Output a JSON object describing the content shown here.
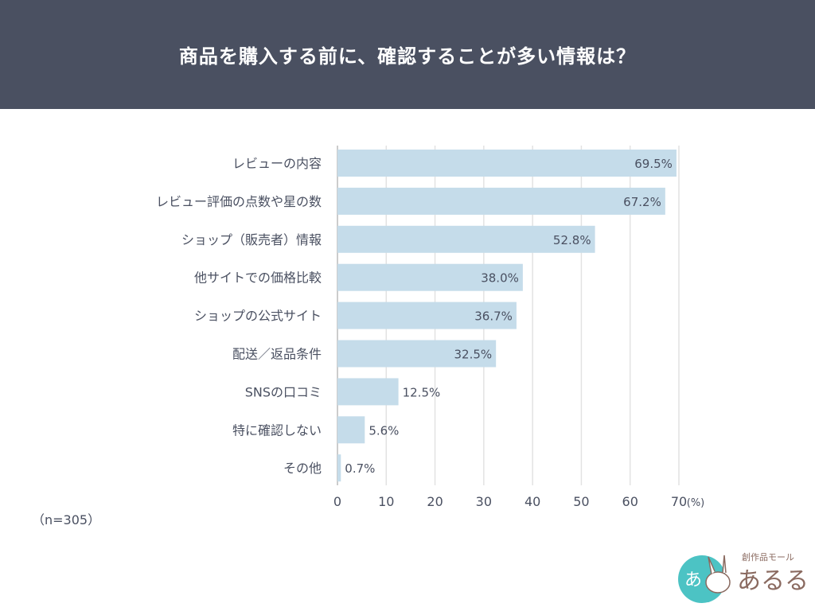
{
  "chart_data": {
    "type": "bar",
    "orientation": "horizontal",
    "title": "商品を購入する前に、確認することが多い情報は？",
    "categories": [
      "レビューの内容",
      "レビュー評価の点数や星の数",
      "ショップ（販売者）情報",
      "他サイトでの価格比較",
      "ショップの公式サイト",
      "配送／返品条件",
      "SNSの口コミ",
      "特に確認しない",
      "その他"
    ],
    "values": [
      69.5,
      67.2,
      52.8,
      38.0,
      36.7,
      32.5,
      12.5,
      5.6,
      0.7
    ],
    "data_labels": [
      "69.5%",
      "67.2%",
      "52.8%",
      "38.0%",
      "36.7%",
      "32.5%",
      "12.5%",
      "5.6%",
      "0.7%"
    ],
    "xlim": [
      0,
      70
    ],
    "xticks": [
      "0",
      "10",
      "20",
      "30",
      "40",
      "50",
      "60",
      "70"
    ],
    "xunit": "(%)",
    "grid": true,
    "bar_color": "#c5dcea",
    "note": "（n=305）"
  },
  "colors": {
    "header_bg": "#4a5061",
    "text": "#4a5061",
    "gridline": "#e2e2e2"
  },
  "logo": {
    "small_text": "創作品モール",
    "main_text": "あるる",
    "badge_text": "あ",
    "color": "#8a6a60",
    "accent": "#4cc3c4"
  }
}
